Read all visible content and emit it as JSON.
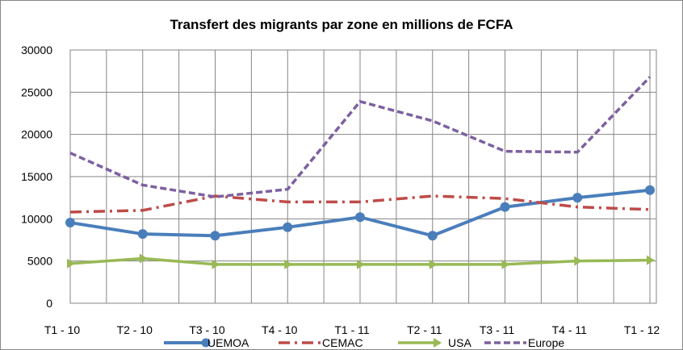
{
  "chart_data": {
    "type": "line",
    "title": "Transfert des migrants par zone en millions de FCFA",
    "xlabel": "",
    "ylabel": "",
    "ylim": [
      0,
      30000
    ],
    "yticks": [
      "0",
      "5000",
      "10000",
      "15000",
      "20000",
      "25000",
      "30000"
    ],
    "categories": [
      "T1 - 10",
      "T2 - 10",
      "T3 - 10",
      "T4 - 10",
      "T1 - 11",
      "T2 - 11",
      "T3 - 11",
      "T4 - 11",
      "T1 - 12"
    ],
    "grid": true,
    "legend": "bottom",
    "series": [
      {
        "name": "UEMOA",
        "color": "#4a7ebb",
        "values": [
          9550,
          8200,
          8000,
          9000,
          10200,
          8000,
          11400,
          12500,
          13400
        ]
      },
      {
        "name": "CEMAC",
        "color": "#be4b48",
        "values": [
          10800,
          11000,
          12700,
          12000,
          12000,
          12700,
          12400,
          11400,
          11100
        ]
      },
      {
        "name": "USA",
        "color": "#98b954",
        "values": [
          4700,
          5300,
          4600,
          4600,
          4600,
          4600,
          4600,
          5000,
          5100
        ]
      },
      {
        "name": "Europe",
        "color": "#7d60a0",
        "values": [
          17800,
          14000,
          12600,
          13500,
          23900,
          21600,
          18000,
          17900,
          26800
        ]
      }
    ]
  }
}
